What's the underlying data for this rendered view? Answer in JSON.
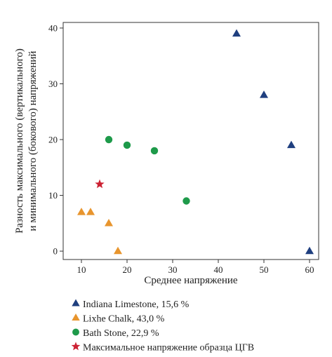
{
  "chart_data": {
    "type": "scatter",
    "title": "",
    "xlabel": "Среднее напряжение",
    "ylabel_lines": [
      "Разность максимального (вертикального)",
      "и минимального (бокового) напряжений"
    ],
    "xlim": [
      6,
      62
    ],
    "ylim": [
      -1.5,
      41
    ],
    "x_ticks": [
      10,
      20,
      30,
      40,
      50,
      60
    ],
    "y_ticks": [
      0,
      10,
      20,
      30,
      40
    ],
    "grid": false,
    "legend_position": "bottom",
    "series": [
      {
        "name": "Indiana Limestone, 15,6 %",
        "marker": "triangle",
        "color": "#1f3f7f",
        "x": [
          44,
          50,
          56,
          60
        ],
        "y": [
          39,
          28,
          19,
          0
        ]
      },
      {
        "name": "Lixhe Chalk, 43,0 %",
        "marker": "triangle",
        "color": "#e8952e",
        "x": [
          10,
          12,
          16,
          18
        ],
        "y": [
          7,
          7,
          5,
          0
        ]
      },
      {
        "name": "Bath Stone, 22,9 %",
        "marker": "circle",
        "color": "#1e9a4a",
        "x": [
          16,
          20,
          26,
          33
        ],
        "y": [
          20,
          19,
          18,
          9
        ]
      },
      {
        "name": "Максимальное напряжение образца ЦГВ",
        "marker": "star",
        "color": "#cc2233",
        "x": [
          14
        ],
        "y": [
          12
        ]
      }
    ]
  }
}
